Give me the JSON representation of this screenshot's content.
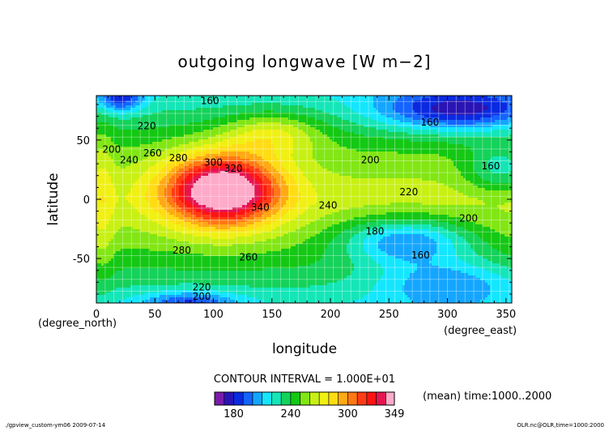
{
  "chart_data": {
    "type": "heatmap",
    "title": "outgoing longwave [W m−2]",
    "xlabel": "longitude",
    "ylabel": "latitude",
    "x_unit": "(degree_east)",
    "y_unit": "(degree_north)",
    "xlim": [
      0,
      355
    ],
    "ylim": [
      -87.5,
      87.5
    ],
    "x_ticks": [
      0,
      50,
      100,
      150,
      200,
      250,
      300,
      350
    ],
    "y_ticks": [
      -50,
      0,
      50
    ],
    "contour_interval_text": "CONTOUR INTERVAL = 1.000E+01",
    "mean_text": "(mean) time:1000..2000",
    "footer_left": "./gpview_custom-ym06  2009-07-14",
    "footer_right": "OLR.nc@OLR,time=1000:2000",
    "colorbar": {
      "levels": [
        160,
        170,
        180,
        190,
        200,
        210,
        220,
        230,
        240,
        250,
        260,
        270,
        280,
        290,
        300,
        310,
        320,
        330,
        340,
        349
      ],
      "tick_labels": [
        "180",
        "240",
        "300",
        "349"
      ],
      "colors": [
        "#7a1ca8",
        "#2a14b4",
        "#0a2ae0",
        "#1464ff",
        "#14a6ff",
        "#14e6ff",
        "#14e6b8",
        "#14d25a",
        "#14c814",
        "#82e614",
        "#c8f014",
        "#f0f014",
        "#ffdc14",
        "#ffaa14",
        "#ff7814",
        "#ff3c14",
        "#ff1414",
        "#e61450",
        "#ffaac8"
      ]
    },
    "contour_labels": [
      {
        "text": "160",
        "lon": 97,
        "lat": 83
      },
      {
        "text": "160",
        "lon": 285,
        "lat": 65
      },
      {
        "text": "160",
        "lon": 337,
        "lat": 28
      },
      {
        "text": "160",
        "lon": 277,
        "lat": -47
      },
      {
        "text": "180",
        "lon": 238,
        "lat": -27
      },
      {
        "text": "200",
        "lon": 13,
        "lat": 42
      },
      {
        "text": "200",
        "lon": 234,
        "lat": 33
      },
      {
        "text": "200",
        "lon": 318,
        "lat": -16
      },
      {
        "text": "200",
        "lon": 90,
        "lat": -82
      },
      {
        "text": "220",
        "lon": 43,
        "lat": 62
      },
      {
        "text": "220",
        "lon": 267,
        "lat": 6
      },
      {
        "text": "220",
        "lon": 90,
        "lat": -74
      },
      {
        "text": "240",
        "lon": 28,
        "lat": 33
      },
      {
        "text": "240",
        "lon": 198,
        "lat": -5
      },
      {
        "text": "260",
        "lon": 48,
        "lat": 39
      },
      {
        "text": "260",
        "lon": 130,
        "lat": -49
      },
      {
        "text": "280",
        "lon": 70,
        "lat": 35
      },
      {
        "text": "280",
        "lon": 73,
        "lat": -43
      },
      {
        "text": "300",
        "lon": 100,
        "lat": 31
      },
      {
        "text": "320",
        "lon": 117,
        "lat": 26
      },
      {
        "text": "340",
        "lon": 140,
        "lat": -7
      }
    ]
  }
}
